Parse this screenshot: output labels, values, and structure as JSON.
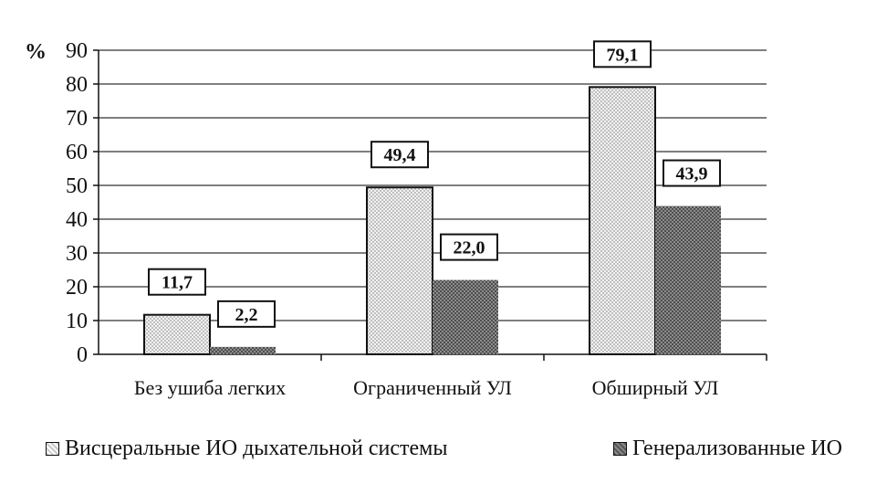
{
  "chart_data": {
    "type": "bar",
    "categories": [
      "Без ушиба легких",
      "Ограниченный УЛ",
      "Обширный УЛ"
    ],
    "series": [
      {
        "name": "Висцеральные ИО дыхательной системы",
        "values": [
          11.7,
          49.4,
          79.1
        ],
        "labels": [
          "11,7",
          "49,4",
          "79,1"
        ],
        "color": "#d9d9d9"
      },
      {
        "name": "Генерализованные ИО",
        "values": [
          2.2,
          22.0,
          43.9
        ],
        "labels": [
          "2,2",
          "22,0",
          "43,9"
        ],
        "color": "#6f6f6f"
      }
    ],
    "ylabel": "%",
    "ylim": [
      0,
      90
    ],
    "yticks": [
      0,
      10,
      20,
      30,
      40,
      50,
      60,
      70,
      80,
      90
    ],
    "grid": true,
    "legend_position": "bottom"
  }
}
